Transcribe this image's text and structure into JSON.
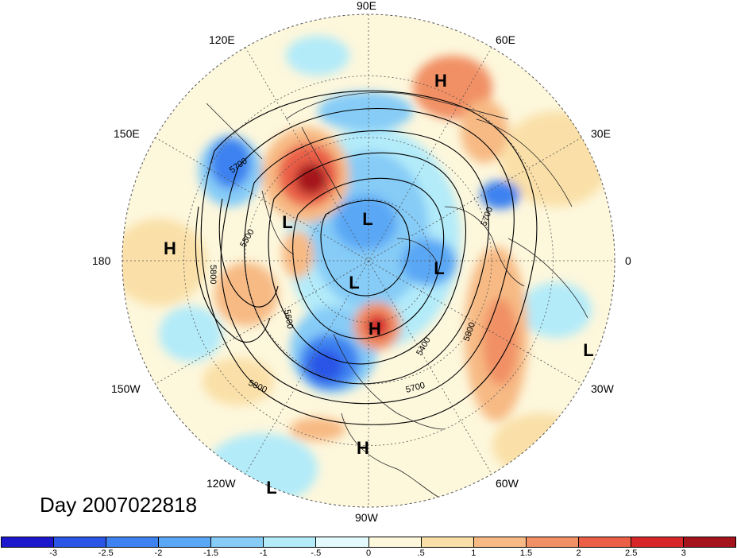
{
  "map": {
    "projection": "north polar stereographic",
    "date_label": "Day 2007022818",
    "longitude_labels": [
      "90E",
      "60E",
      "30E",
      "0",
      "30W",
      "60W",
      "90W",
      "120W",
      "150W",
      "180",
      "150E",
      "120E"
    ],
    "pressure_centers": [
      {
        "name": "h-west-pacific-label",
        "text": "H"
      },
      {
        "name": "h-north-russia-label",
        "text": "H"
      },
      {
        "name": "l-east-siberia-label",
        "text": "L"
      },
      {
        "name": "l-arctic-label",
        "text": "L"
      },
      {
        "name": "l-greenland-label",
        "text": "L"
      },
      {
        "name": "l-canada-label",
        "text": "L"
      },
      {
        "name": "h-hudson-label",
        "text": "H"
      },
      {
        "name": "l-east-atlantic-label",
        "text": "L"
      },
      {
        "name": "h-central-america-label",
        "text": "H"
      },
      {
        "name": "l-east-pacific-label",
        "text": "L"
      }
    ],
    "contour_labels": [
      "5700",
      "5500",
      "5800",
      "5600",
      "5700",
      "5800",
      "5400",
      "5700",
      "5800"
    ]
  },
  "colorbar": {
    "colors": [
      "#1c16cc",
      "#2a55e6",
      "#3d82f0",
      "#5aa7f5",
      "#86ccf7",
      "#b3ebf9",
      "#e3f9fb",
      "#fdf7dc",
      "#fae0a8",
      "#f7ba84",
      "#f19065",
      "#ea5f46",
      "#d6262a",
      "#a5141d"
    ],
    "tick_labels": [
      "-3",
      "-2.5",
      "-2",
      "-1.5",
      "-1",
      "-.5",
      "0",
      ".5",
      "1",
      "1.5",
      "2",
      "2.5",
      "3"
    ]
  }
}
